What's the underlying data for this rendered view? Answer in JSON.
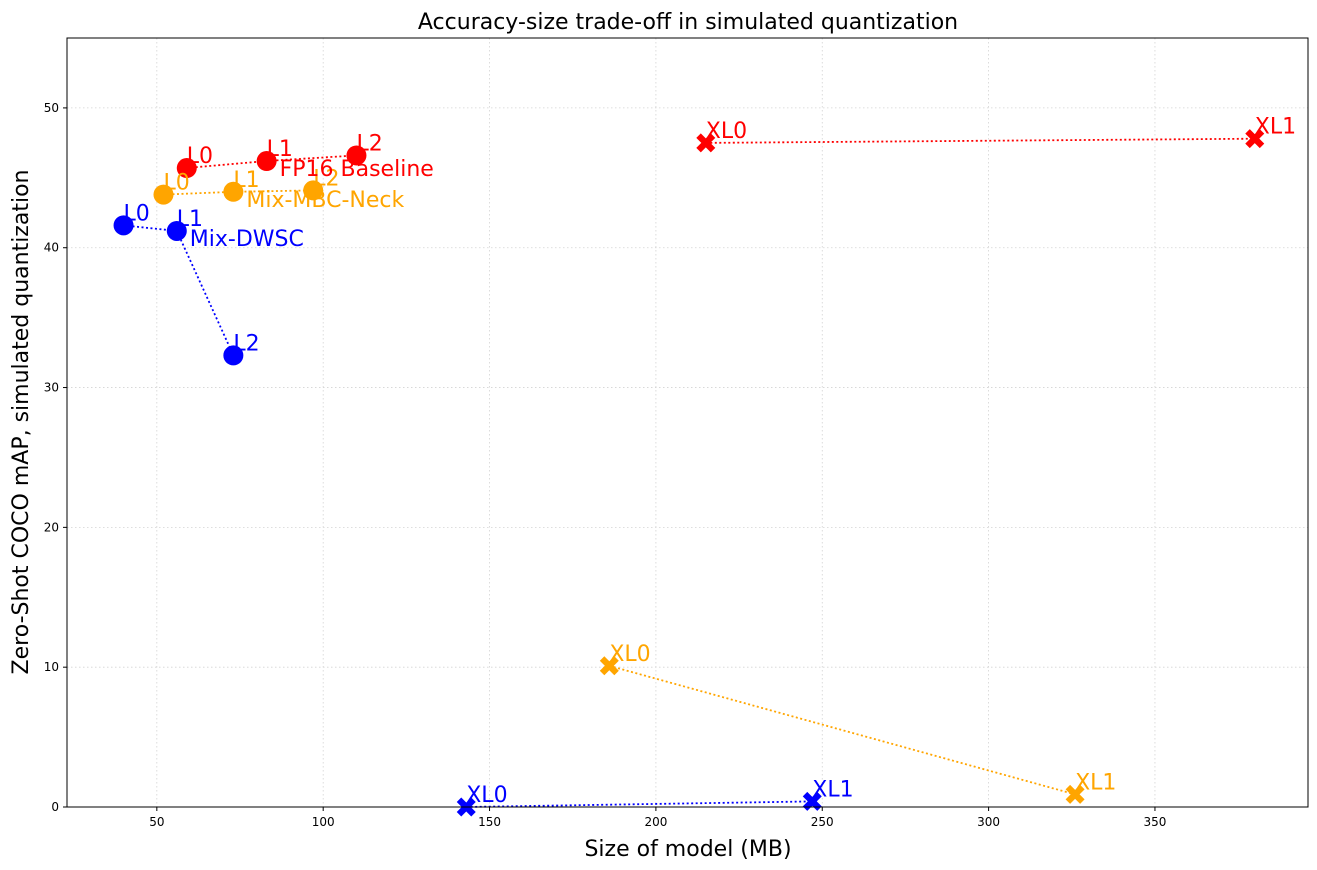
{
  "chart_data": {
    "type": "scatter",
    "title": "Accuracy-size trade-off in simulated quantization",
    "xlabel": "Size of model (MB)",
    "ylabel": "Zero-Shot COCO mAP, simulated quantization",
    "xlim": [
      23,
      396
    ],
    "ylim": [
      0,
      55
    ],
    "xticks": [
      50,
      100,
      150,
      200,
      250,
      300,
      350
    ],
    "yticks": [
      0,
      10,
      20,
      30,
      40,
      50
    ],
    "grid": true,
    "series": [
      {
        "name": "FP16 Baseline",
        "color": "#ff0000",
        "groups": [
          {
            "marker": "circle",
            "points": [
              {
                "label": "L0",
                "x": 59,
                "y": 45.7
              },
              {
                "label": "L1",
                "x": 83,
                "y": 46.2
              },
              {
                "label": "L2",
                "x": 110,
                "y": 46.6
              }
            ]
          },
          {
            "marker": "cross",
            "points": [
              {
                "label": "XL0",
                "x": 215,
                "y": 47.5
              },
              {
                "label": "XL1",
                "x": 380,
                "y": 47.8
              }
            ]
          }
        ]
      },
      {
        "name": "Mix-MBC-Neck",
        "color": "#ffa500",
        "groups": [
          {
            "marker": "circle",
            "points": [
              {
                "label": "L0",
                "x": 52,
                "y": 43.8
              },
              {
                "label": "L1",
                "x": 73,
                "y": 44.0
              },
              {
                "label": "L2",
                "x": 97,
                "y": 44.1
              }
            ]
          },
          {
            "marker": "cross",
            "points": [
              {
                "label": "XL0",
                "x": 186,
                "y": 10.1
              },
              {
                "label": "XL1",
                "x": 326,
                "y": 0.9
              }
            ]
          }
        ]
      },
      {
        "name": "Mix-DWSC",
        "color": "#0000ff",
        "groups": [
          {
            "marker": "circle",
            "points": [
              {
                "label": "L0",
                "x": 40,
                "y": 41.6
              },
              {
                "label": "L1",
                "x": 56,
                "y": 41.2
              },
              {
                "label": "L2",
                "x": 73,
                "y": 32.3
              }
            ]
          },
          {
            "marker": "cross",
            "points": [
              {
                "label": "XL0",
                "x": 143,
                "y": 0.0
              },
              {
                "label": "XL1",
                "x": 247,
                "y": 0.4
              }
            ]
          }
        ]
      }
    ]
  }
}
